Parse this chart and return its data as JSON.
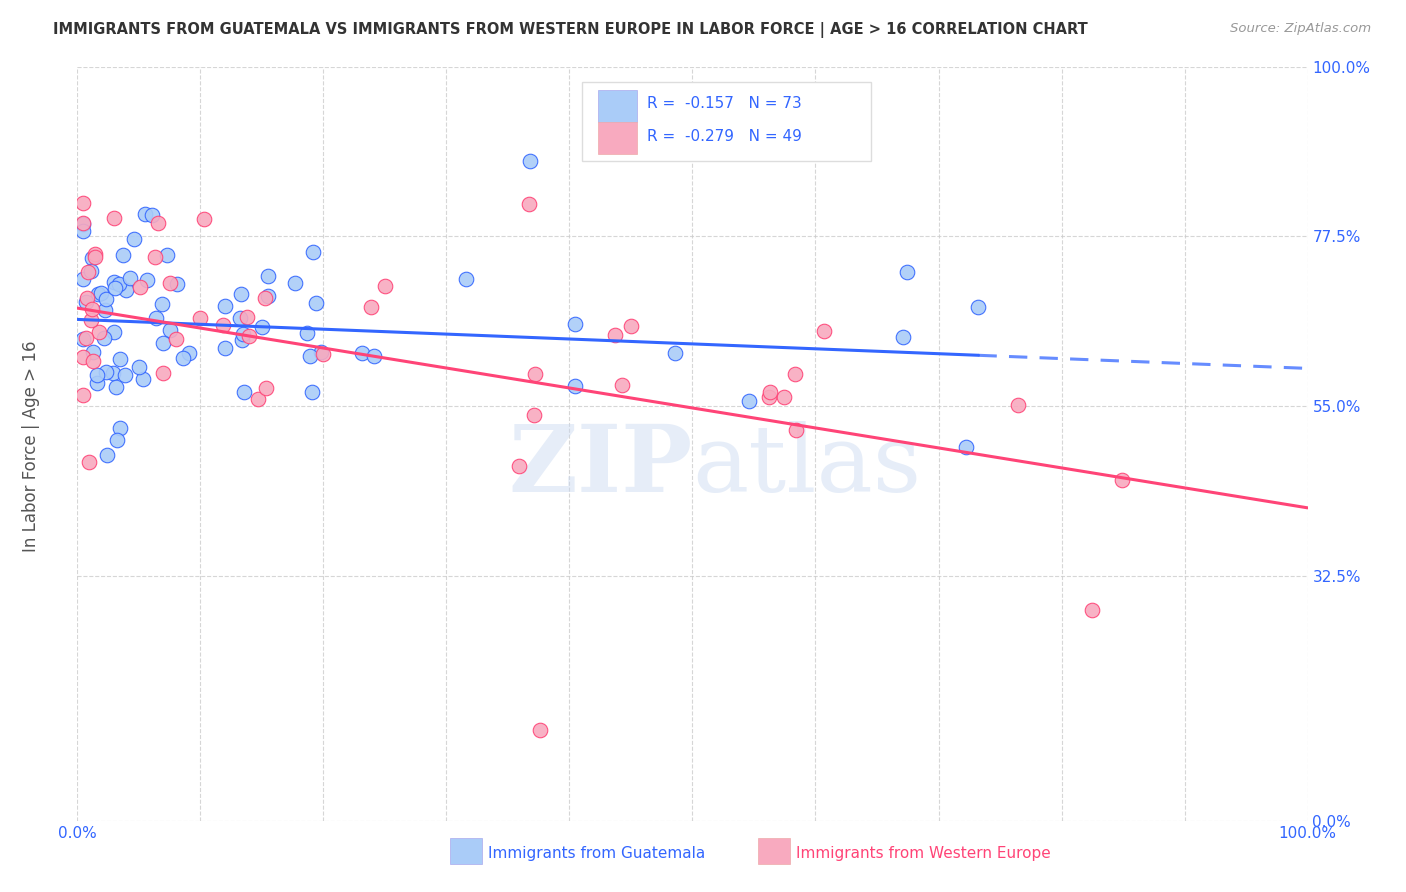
{
  "title": "IMMIGRANTS FROM GUATEMALA VS IMMIGRANTS FROM WESTERN EUROPE IN LABOR FORCE | AGE > 16 CORRELATION CHART",
  "source": "Source: ZipAtlas.com",
  "ylabel": "In Labor Force | Age > 16",
  "xlim": [
    0.0,
    1.0
  ],
  "ylim": [
    0.0,
    1.0
  ],
  "ytick_labels": [
    "0.0%",
    "32.5%",
    "55.0%",
    "77.5%",
    "100.0%"
  ],
  "ytick_vals": [
    0.0,
    0.325,
    0.55,
    0.775,
    1.0
  ],
  "legend_label1": "R =  -0.157   N = 73",
  "legend_label2": "R =  -0.279   N = 49",
  "R1": -0.157,
  "N1": 73,
  "R2": -0.279,
  "N2": 49,
  "color1": "#aaccf8",
  "color2": "#f8aabf",
  "line_color1": "#3366ff",
  "line_color2": "#ff4477",
  "watermark": "ZIPatlas",
  "background_color": "#ffffff",
  "grid_color": "#cccccc",
  "title_color": "#333333",
  "axis_label_color": "#3366ff",
  "tick_color": "#3366ff",
  "source_color": "#999999"
}
